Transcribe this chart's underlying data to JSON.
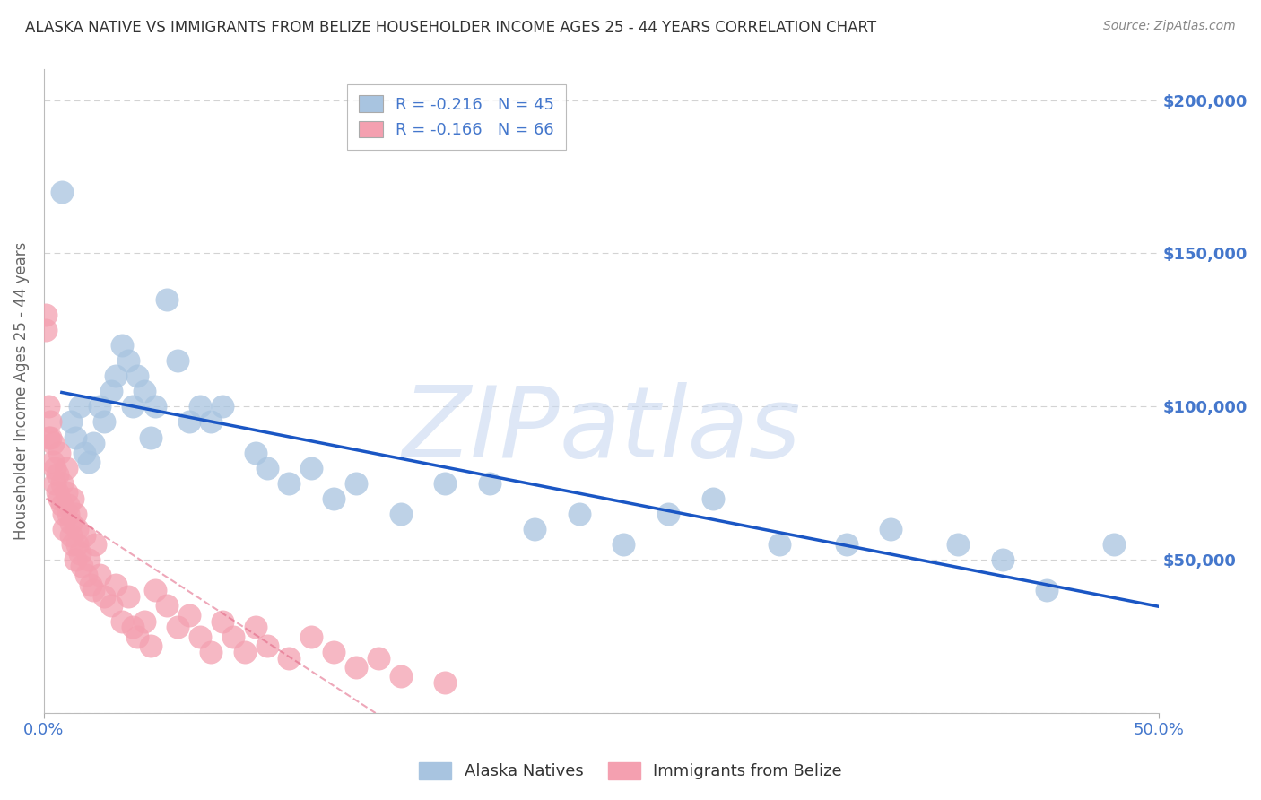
{
  "title": "ALASKA NATIVE VS IMMIGRANTS FROM BELIZE HOUSEHOLDER INCOME AGES 25 - 44 YEARS CORRELATION CHART",
  "source": "Source: ZipAtlas.com",
  "ylabel": "Householder Income Ages 25 - 44 years",
  "xlim": [
    0,
    0.5
  ],
  "ylim": [
    0,
    210000
  ],
  "yticks": [
    0,
    50000,
    100000,
    150000,
    200000
  ],
  "ytick_labels": [
    "",
    "$50,000",
    "$100,000",
    "$150,000",
    "$200,000"
  ],
  "xtick_positions": [
    0.0,
    0.5
  ],
  "xtick_labels": [
    "0.0%",
    "50.0%"
  ],
  "legend1_label": "R = -0.216   N = 45",
  "legend2_label": "R = -0.166   N = 66",
  "group1_color": "#a8c4e0",
  "group2_color": "#f4a0b0",
  "trend1_color": "#1a56c4",
  "trend2_color": "#e06080",
  "watermark": "ZIPatlas",
  "watermark_color": "#c8d8f0",
  "background_color": "#ffffff",
  "grid_color": "#c8c8c8",
  "axis_label_color": "#4477cc",
  "title_color": "#333333",
  "alaska_natives_x": [
    0.008,
    0.012,
    0.014,
    0.016,
    0.018,
    0.02,
    0.022,
    0.025,
    0.027,
    0.03,
    0.032,
    0.035,
    0.038,
    0.04,
    0.042,
    0.045,
    0.048,
    0.05,
    0.055,
    0.06,
    0.065,
    0.07,
    0.075,
    0.08,
    0.095,
    0.1,
    0.11,
    0.12,
    0.13,
    0.14,
    0.16,
    0.18,
    0.2,
    0.22,
    0.24,
    0.26,
    0.28,
    0.3,
    0.33,
    0.36,
    0.38,
    0.41,
    0.43,
    0.45,
    0.48
  ],
  "alaska_natives_y": [
    170000,
    95000,
    90000,
    100000,
    85000,
    82000,
    88000,
    100000,
    95000,
    105000,
    110000,
    120000,
    115000,
    100000,
    110000,
    105000,
    90000,
    100000,
    135000,
    115000,
    95000,
    100000,
    95000,
    100000,
    85000,
    80000,
    75000,
    80000,
    70000,
    75000,
    65000,
    75000,
    75000,
    60000,
    65000,
    55000,
    65000,
    70000,
    55000,
    55000,
    60000,
    55000,
    50000,
    40000,
    55000
  ],
  "belize_x": [
    0.001,
    0.001,
    0.002,
    0.002,
    0.003,
    0.003,
    0.004,
    0.004,
    0.005,
    0.005,
    0.006,
    0.006,
    0.007,
    0.007,
    0.008,
    0.008,
    0.009,
    0.009,
    0.01,
    0.01,
    0.011,
    0.011,
    0.012,
    0.012,
    0.013,
    0.013,
    0.014,
    0.014,
    0.015,
    0.015,
    0.016,
    0.017,
    0.018,
    0.019,
    0.02,
    0.021,
    0.022,
    0.023,
    0.025,
    0.027,
    0.03,
    0.032,
    0.035,
    0.038,
    0.04,
    0.042,
    0.045,
    0.048,
    0.05,
    0.055,
    0.06,
    0.065,
    0.07,
    0.075,
    0.08,
    0.085,
    0.09,
    0.095,
    0.1,
    0.11,
    0.12,
    0.13,
    0.14,
    0.15,
    0.16,
    0.18
  ],
  "belize_y": [
    130000,
    125000,
    100000,
    90000,
    95000,
    90000,
    88000,
    82000,
    80000,
    75000,
    78000,
    72000,
    85000,
    70000,
    75000,
    68000,
    65000,
    60000,
    80000,
    72000,
    68000,
    65000,
    62000,
    58000,
    70000,
    55000,
    50000,
    65000,
    60000,
    55000,
    52000,
    48000,
    58000,
    45000,
    50000,
    42000,
    40000,
    55000,
    45000,
    38000,
    35000,
    42000,
    30000,
    38000,
    28000,
    25000,
    30000,
    22000,
    40000,
    35000,
    28000,
    32000,
    25000,
    20000,
    30000,
    25000,
    20000,
    28000,
    22000,
    18000,
    25000,
    20000,
    15000,
    18000,
    12000,
    10000
  ]
}
